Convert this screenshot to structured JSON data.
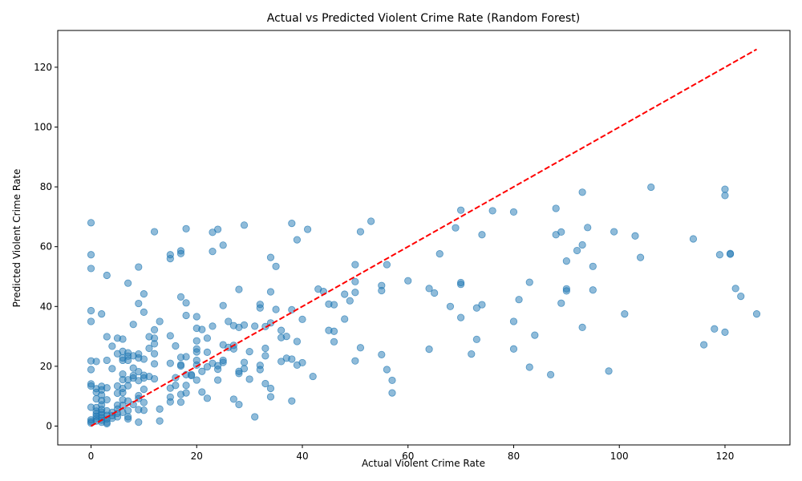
{
  "chart_data": {
    "type": "scatter",
    "title": "Actual vs Predicted Violent Crime Rate (Random Forest)",
    "xlabel": "Actual Violent Crime Rate",
    "ylabel": "Predicted Violent Crime Rate",
    "xlim": [
      -6.3,
      132.3
    ],
    "ylim": [
      -6.3,
      132.3
    ],
    "xticks": [
      0,
      20,
      40,
      60,
      80,
      100,
      120
    ],
    "yticks": [
      0,
      20,
      40,
      60,
      80,
      100,
      120
    ],
    "grid": false,
    "legend": "none",
    "colors": {
      "points": "#1f77b4",
      "reference_line": "#ff0000",
      "axes": "#000000"
    },
    "reference_line": {
      "style": "dashed",
      "from": [
        0,
        0
      ],
      "to": [
        126,
        126
      ]
    },
    "series": [
      {
        "marker": "circle",
        "alpha": 0.5,
        "points": [
          [
            0,
            68
          ],
          [
            0,
            57.3
          ],
          [
            0,
            52.7
          ],
          [
            0,
            38.6
          ],
          [
            0,
            35
          ],
          [
            0,
            21.8
          ],
          [
            0,
            18.9
          ],
          [
            0,
            14.1
          ],
          [
            0,
            13.4
          ],
          [
            0,
            6.3
          ],
          [
            0,
            2.1
          ],
          [
            0,
            1.5
          ],
          [
            0,
            1
          ],
          [
            1,
            21.6
          ],
          [
            1,
            12.5
          ],
          [
            1,
            11.3
          ],
          [
            1,
            9.1
          ],
          [
            1,
            6.2
          ],
          [
            1,
            5
          ],
          [
            1,
            4.1
          ],
          [
            1,
            3.3
          ],
          [
            1,
            2.5
          ],
          [
            1,
            1.7
          ],
          [
            2,
            37.5
          ],
          [
            2,
            13.3
          ],
          [
            2,
            12.1
          ],
          [
            2,
            10.4
          ],
          [
            2,
            8.5
          ],
          [
            2,
            7.1
          ],
          [
            2,
            5.6
          ],
          [
            2,
            4.6
          ],
          [
            2,
            3.8
          ],
          [
            2,
            2.8
          ],
          [
            2,
            2
          ],
          [
            2,
            1.3
          ],
          [
            3,
            50.4
          ],
          [
            3,
            29.9
          ],
          [
            3,
            22
          ],
          [
            3,
            12.8
          ],
          [
            3,
            8.8
          ],
          [
            3,
            5.1
          ],
          [
            3,
            3.6
          ],
          [
            3,
            2.4
          ],
          [
            3,
            1.2
          ],
          [
            3,
            0.8
          ],
          [
            4,
            26.7
          ],
          [
            4,
            19.2
          ],
          [
            4,
            4.6
          ],
          [
            4,
            3.5
          ],
          [
            4,
            2.6
          ],
          [
            5,
            29.4
          ],
          [
            5,
            24.2
          ],
          [
            5,
            13.4
          ],
          [
            5,
            11
          ],
          [
            5,
            7
          ],
          [
            5,
            5.7
          ],
          [
            5,
            4.3
          ],
          [
            5,
            3.1
          ],
          [
            6,
            29.1
          ],
          [
            6,
            25
          ],
          [
            6,
            22.8
          ],
          [
            6,
            22
          ],
          [
            6,
            17.4
          ],
          [
            6,
            15.5
          ],
          [
            6,
            12.6
          ],
          [
            6,
            11.2
          ],
          [
            6,
            8.8
          ],
          [
            6,
            6.9
          ],
          [
            6,
            4.6
          ],
          [
            7,
            47.8
          ],
          [
            7,
            24.5
          ],
          [
            7,
            23.4
          ],
          [
            7,
            22
          ],
          [
            7,
            15.5
          ],
          [
            7,
            13.5
          ],
          [
            7,
            8.4
          ],
          [
            7,
            5.2
          ],
          [
            7,
            3.1
          ],
          [
            7,
            2.4
          ],
          [
            8,
            34
          ],
          [
            8,
            23.5
          ],
          [
            8,
            19.4
          ],
          [
            8,
            16.9
          ],
          [
            8,
            16.1
          ],
          [
            8,
            7.2
          ],
          [
            9,
            53.2
          ],
          [
            9,
            41
          ],
          [
            9,
            24.1
          ],
          [
            9,
            22.8
          ],
          [
            9,
            18.2
          ],
          [
            9,
            15.2
          ],
          [
            9,
            10.2
          ],
          [
            9,
            9.2
          ],
          [
            9,
            5.5
          ],
          [
            9,
            1.3
          ],
          [
            10,
            44.2
          ],
          [
            10,
            38.1
          ],
          [
            10,
            22.4
          ],
          [
            10,
            17
          ],
          [
            10,
            16.1
          ],
          [
            10,
            12.3
          ],
          [
            10,
            7.9
          ],
          [
            10,
            5.3
          ],
          [
            11,
            29.9
          ],
          [
            11,
            26
          ],
          [
            11,
            16.6
          ],
          [
            12,
            65
          ],
          [
            12,
            32.2
          ],
          [
            12,
            29.4
          ],
          [
            12,
            27.5
          ],
          [
            12,
            24.2
          ],
          [
            12,
            20.8
          ],
          [
            12,
            15.8
          ],
          [
            13,
            35
          ],
          [
            13,
            5.7
          ],
          [
            13,
            1.7
          ],
          [
            15,
            57.3
          ],
          [
            15,
            56
          ],
          [
            15,
            30.2
          ],
          [
            15,
            21
          ],
          [
            15,
            12.7
          ],
          [
            15,
            9.7
          ],
          [
            15,
            8.1
          ],
          [
            16,
            26.8
          ],
          [
            16,
            16.2
          ],
          [
            16,
            13.6
          ],
          [
            17,
            58.6
          ],
          [
            17,
            57.7
          ],
          [
            17,
            43.2
          ],
          [
            17,
            23
          ],
          [
            17,
            20.5
          ],
          [
            17,
            20.1
          ],
          [
            17,
            10.6
          ],
          [
            17,
            8
          ],
          [
            18,
            66
          ],
          [
            18,
            41.2
          ],
          [
            18,
            37
          ],
          [
            18,
            23.2
          ],
          [
            18,
            17.2
          ],
          [
            18,
            13.6
          ],
          [
            18,
            11.1
          ],
          [
            19,
            17.2
          ],
          [
            19,
            16.9
          ],
          [
            20,
            36.6
          ],
          [
            20,
            32.7
          ],
          [
            20,
            28.5
          ],
          [
            20,
            25.8
          ],
          [
            20,
            24.8
          ],
          [
            20,
            22
          ],
          [
            20,
            20.4
          ],
          [
            20,
            15.4
          ],
          [
            21,
            32.3
          ],
          [
            21,
            18.3
          ],
          [
            21,
            11.4
          ],
          [
            22,
            29.4
          ],
          [
            22,
            24.7
          ],
          [
            22,
            19.8
          ],
          [
            22,
            9.3
          ],
          [
            23,
            64.8
          ],
          [
            23,
            58.4
          ],
          [
            23,
            33.4
          ],
          [
            23,
            21
          ],
          [
            24,
            65.8
          ],
          [
            24,
            20.2
          ],
          [
            24,
            19
          ],
          [
            24,
            15.4
          ],
          [
            25,
            60.5
          ],
          [
            25,
            40.3
          ],
          [
            25,
            27.2
          ],
          [
            25,
            22
          ],
          [
            25,
            21.3
          ],
          [
            26,
            35
          ],
          [
            26,
            26.3
          ],
          [
            27,
            33.6
          ],
          [
            27,
            27
          ],
          [
            27,
            25.8
          ],
          [
            27,
            9
          ],
          [
            28,
            45.7
          ],
          [
            28,
            33
          ],
          [
            28,
            18.3
          ],
          [
            28,
            17.6
          ],
          [
            28,
            7.2
          ],
          [
            29,
            67.2
          ],
          [
            29,
            33.8
          ],
          [
            29,
            21.3
          ],
          [
            29,
            19.2
          ],
          [
            30,
            24.9
          ],
          [
            30,
            15.7
          ],
          [
            31,
            33.4
          ],
          [
            31,
            3.1
          ],
          [
            32,
            40.7
          ],
          [
            32,
            39.5
          ],
          [
            32,
            20.3
          ],
          [
            32,
            18.9
          ],
          [
            33,
            33.3
          ],
          [
            33,
            26
          ],
          [
            33,
            23.5
          ],
          [
            33,
            14.2
          ],
          [
            34,
            56.4
          ],
          [
            34,
            44.9
          ],
          [
            34,
            34.5
          ],
          [
            34,
            12.6
          ],
          [
            34,
            9.8
          ],
          [
            35,
            53.4
          ],
          [
            35,
            39
          ],
          [
            36,
            32
          ],
          [
            36,
            29.6
          ],
          [
            36,
            21.6
          ],
          [
            37,
            30
          ],
          [
            37,
            22.7
          ],
          [
            38,
            67.8
          ],
          [
            38,
            38.9
          ],
          [
            38,
            22.4
          ],
          [
            38,
            8.4
          ],
          [
            39,
            62.3
          ],
          [
            39,
            28.3
          ],
          [
            39,
            20.4
          ],
          [
            40,
            35.7
          ],
          [
            40,
            21.2
          ],
          [
            41,
            65.8
          ],
          [
            42,
            16.6
          ],
          [
            43,
            45.8
          ],
          [
            44,
            45
          ],
          [
            45,
            40.8
          ],
          [
            45,
            32
          ],
          [
            46,
            40.6
          ],
          [
            46,
            31.7
          ],
          [
            46,
            28.2
          ],
          [
            48,
            44.1
          ],
          [
            48,
            35.8
          ],
          [
            49,
            41.9
          ],
          [
            50,
            54
          ],
          [
            50,
            48.3
          ],
          [
            50,
            44.7
          ],
          [
            50,
            21.8
          ],
          [
            51,
            65
          ],
          [
            51,
            26.2
          ],
          [
            53,
            68.5
          ],
          [
            55,
            47
          ],
          [
            55,
            45.3
          ],
          [
            55,
            23.9
          ],
          [
            56,
            54
          ],
          [
            56,
            18.9
          ],
          [
            57,
            15.3
          ],
          [
            57,
            11.1
          ],
          [
            60,
            48.6
          ],
          [
            64,
            46
          ],
          [
            64,
            25.7
          ],
          [
            65,
            44.5
          ],
          [
            66,
            57.6
          ],
          [
            68,
            40
          ],
          [
            69,
            66.3
          ],
          [
            70,
            72.2
          ],
          [
            70,
            48
          ],
          [
            70,
            47.4
          ],
          [
            70,
            36.3
          ],
          [
            72,
            24.1
          ],
          [
            73,
            39.5
          ],
          [
            73,
            29
          ],
          [
            74,
            64
          ],
          [
            74,
            40.6
          ],
          [
            76,
            72
          ],
          [
            80,
            71.6
          ],
          [
            80,
            35
          ],
          [
            80,
            25.8
          ],
          [
            81,
            42.3
          ],
          [
            83,
            48.1
          ],
          [
            83,
            19.7
          ],
          [
            84,
            30.4
          ],
          [
            87,
            17.2
          ],
          [
            88,
            72.8
          ],
          [
            88,
            64
          ],
          [
            89,
            64.9
          ],
          [
            89,
            41.1
          ],
          [
            90,
            55.2
          ],
          [
            90,
            45.9
          ],
          [
            90,
            45.2
          ],
          [
            92,
            58.7
          ],
          [
            93,
            78.2
          ],
          [
            93,
            60.6
          ],
          [
            93,
            33
          ],
          [
            94,
            66.4
          ],
          [
            95,
            53.4
          ],
          [
            95,
            45.5
          ],
          [
            98,
            18.4
          ],
          [
            99,
            65
          ],
          [
            101,
            37.5
          ],
          [
            103,
            63.6
          ],
          [
            104,
            56.4
          ],
          [
            106,
            79.9
          ],
          [
            114,
            62.6
          ],
          [
            116,
            27.2
          ],
          [
            118,
            32.5
          ],
          [
            119,
            57.3
          ],
          [
            120,
            79.2
          ],
          [
            120,
            77.1
          ],
          [
            120,
            31.4
          ],
          [
            121,
            57.7
          ],
          [
            121,
            57.5
          ],
          [
            122,
            46
          ],
          [
            123,
            43.4
          ],
          [
            126,
            37.5
          ]
        ]
      }
    ]
  }
}
